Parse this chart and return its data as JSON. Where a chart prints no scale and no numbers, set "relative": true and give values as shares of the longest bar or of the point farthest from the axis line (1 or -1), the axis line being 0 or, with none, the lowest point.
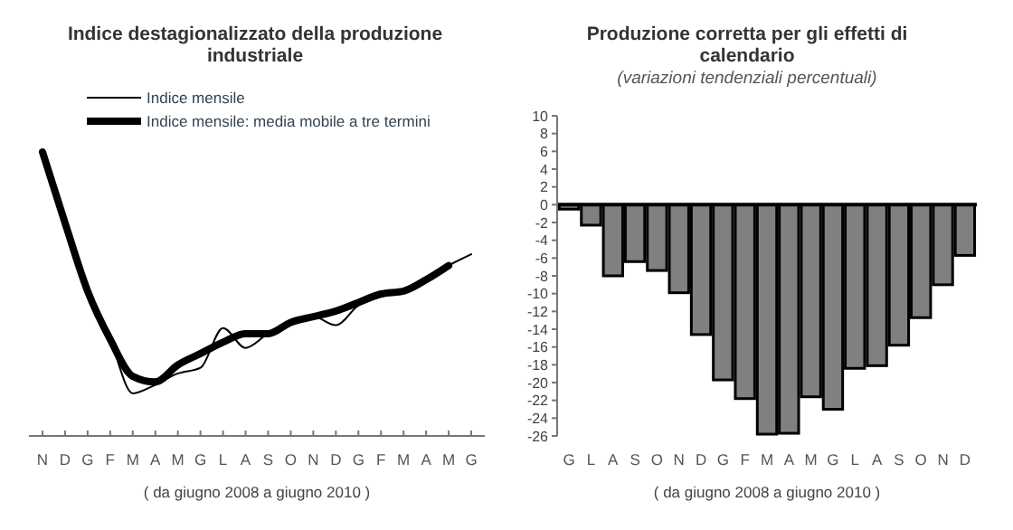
{
  "chart_data": [
    {
      "type": "line",
      "title": "Indice destagionalizzato della produzione industriale",
      "xlabel": "( da giugno 2008 a giugno 2010 )",
      "relative": true,
      "legend": "top",
      "categories": [
        "N",
        "D",
        "G",
        "F",
        "M",
        "A",
        "M",
        "G",
        "L",
        "A",
        "S",
        "O",
        "N",
        "D",
        "G",
        "F",
        "M",
        "A",
        "M",
        "G"
      ],
      "series": [
        {
          "name": "Indice mensile",
          "color": "#000000",
          "values": [
            1.0,
            0.75,
            0.51,
            0.34,
            0.15,
            0.18,
            0.22,
            0.24,
            0.38,
            0.31,
            0.36,
            0.39,
            0.42,
            0.39,
            0.46,
            0.49,
            0.51,
            0.55,
            0.6,
            0.64
          ]
        },
        {
          "name": "Indice mensile: media mobile a tre termini",
          "color": "#000000",
          "values": [
            1.0,
            0.75,
            0.51,
            0.34,
            0.21,
            0.19,
            0.25,
            0.29,
            0.33,
            0.36,
            0.36,
            0.4,
            0.42,
            0.44,
            0.47,
            0.5,
            0.51,
            0.55,
            0.6,
            null
          ]
        }
      ]
    },
    {
      "type": "bar",
      "title": "Produzione corretta per gli effetti di calendario",
      "subtitle": "(variazioni tendenziali percentuali)",
      "xlabel": "( da giugno 2008 a giugno 2010 )",
      "color": "#808080",
      "categories": [
        "G",
        "L",
        "A",
        "S",
        "O",
        "N",
        "D",
        "G",
        "F",
        "M",
        "A",
        "M",
        "G",
        "L",
        "A",
        "S",
        "O",
        "N",
        "D"
      ],
      "values": [
        -0.5,
        -2.3,
        -8.0,
        -6.4,
        -7.4,
        -9.9,
        -14.6,
        -19.7,
        -21.8,
        -25.8,
        -25.7,
        -21.6,
        -23.0,
        -18.4,
        -18.1,
        -15.8,
        -12.7,
        -9.0,
        -5.7
      ],
      "ylim": [
        -26,
        10
      ],
      "yticks": [
        10,
        8,
        6,
        4,
        2,
        0,
        -2,
        -4,
        -6,
        -8,
        -10,
        -12,
        -14,
        -16,
        -18,
        -20,
        -22,
        -24,
        -26
      ]
    }
  ]
}
